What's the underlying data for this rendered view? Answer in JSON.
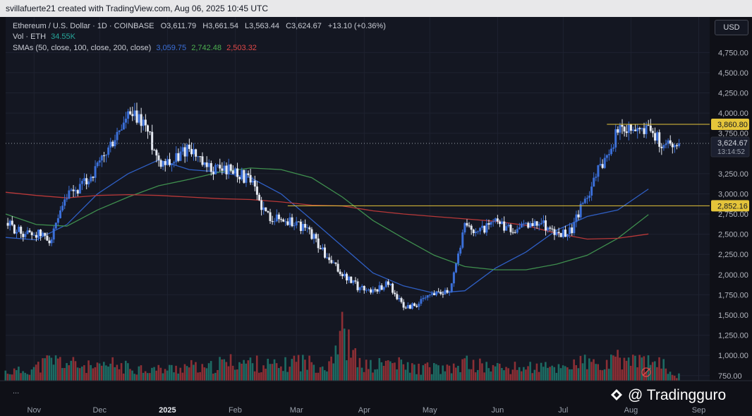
{
  "header": {
    "text": "svillafuerte21 created with TradingView.com, Aug 06, 2025 10:45 UTC"
  },
  "legend": {
    "symbol": "Ethereum / U.S. Dollar · 1D · COINBASE",
    "open_label": "O",
    "open": "3,611.79",
    "high_label": "H",
    "high": "3,661.54",
    "low_label": "L",
    "low": "3,563.44",
    "close_label": "C",
    "close": "3,624.67",
    "change": "+13.10 (+0.36%)",
    "vol_label": "Vol · ETH",
    "vol_value": "34.55K",
    "sma_label": "SMAs (50, close, 100, close, 200, close)",
    "sma50": "3,059.75",
    "sma100": "2,742.48",
    "sma200": "2,503.32"
  },
  "currency_button": "USD",
  "price_tag": {
    "value": "3,624.67",
    "countdown": "13:14:52"
  },
  "more_dots": "...",
  "watermark": "@ Tradingguro",
  "colors": {
    "up": "#3b6fd8",
    "down": "#e6eaf2",
    "sma50": "#2f5fc4",
    "sma100": "#3f8f4e",
    "sma200": "#b83838",
    "level": "#e5c53a",
    "vol_up": "#1d6b63",
    "vol_down": "#8c2f35",
    "background": "#141722",
    "grid": "#1e2230"
  },
  "chart_data": {
    "type": "candlestick",
    "title": "Ethereum / U.S. Dollar · 1D · COINBASE",
    "y_unit": "USD",
    "ylim": [
      680,
      5000
    ],
    "grid": true,
    "y_ticks": [
      "750.00",
      "1,000.00",
      "1,250.00",
      "1,500.00",
      "1,750.00",
      "2,000.00",
      "2,250.00",
      "2,500.00",
      "2,750.00",
      "3,000.00",
      "3,250.00",
      "3,750.00",
      "4,000.00",
      "4,250.00",
      "4,500.00",
      "4,750.00"
    ],
    "x_ticks": [
      "Nov",
      "Dec",
      "2025",
      "Feb",
      "Mar",
      "Apr",
      "May",
      "Jun",
      "Jul",
      "Aug",
      "Sep"
    ],
    "x_range": [
      "2024-10-19",
      "2025-09-06"
    ],
    "levels": [
      {
        "label": "3,860.80",
        "value": 3860.8,
        "color": "#e5c53a"
      },
      {
        "label": "2,852.16",
        "value": 2852.16,
        "color": "#e5c53a"
      }
    ],
    "close_series_weekly": {
      "start": "2024-10-19",
      "step_days": 7,
      "values": [
        2640,
        2520,
        2510,
        2440,
        2950,
        3090,
        3320,
        3640,
        3960,
        3900,
        3420,
        3410,
        3600,
        3310,
        3320,
        3290,
        3150,
        2750,
        2680,
        2640,
        2500,
        2200,
        2000,
        1850,
        1800,
        1900,
        1590,
        1640,
        1780,
        1810,
        2600,
        2550,
        2640,
        2550,
        2600,
        2660,
        2490,
        2560,
        2990,
        3400,
        3770,
        3820,
        3800,
        3610,
        3624.67
      ]
    },
    "series": [
      {
        "name": "SMA 50",
        "last": 3059.75,
        "start": "2024-10-19",
        "step_days": 14,
        "values": [
          2460,
          2430,
          2620,
          3000,
          3250,
          3420,
          3300,
          3270,
          3200,
          3000,
          2680,
          2350,
          2020,
          1860,
          1770,
          1800,
          2080,
          2280,
          2550,
          2720,
          2800,
          3059.75
        ]
      },
      {
        "name": "SMA 100",
        "last": 2742.48,
        "start": "2024-10-19",
        "step_days": 14,
        "values": [
          2750,
          2620,
          2600,
          2800,
          2960,
          3100,
          3180,
          3270,
          3320,
          3300,
          3200,
          2960,
          2670,
          2450,
          2240,
          2100,
          2060,
          2060,
          2130,
          2240,
          2450,
          2742.48
        ]
      },
      {
        "name": "SMA 200",
        "last": 2503.32,
        "start": "2024-10-19",
        "step_days": 14,
        "values": [
          3020,
          2980,
          2950,
          2980,
          2990,
          2980,
          2960,
          2940,
          2930,
          2900,
          2860,
          2850,
          2790,
          2750,
          2720,
          2690,
          2660,
          2610,
          2510,
          2440,
          2450,
          2503.32
        ]
      }
    ],
    "volume": {
      "label": "Vol · ETH",
      "start": "2024-10-19",
      "step_days": 7,
      "values_k": [
        380,
        420,
        560,
        900,
        760,
        640,
        520,
        700,
        560,
        540,
        480,
        520,
        640,
        460,
        720,
        820,
        760,
        690,
        580,
        900,
        720,
        660,
        2100,
        760,
        580,
        800,
        640,
        520,
        560,
        450,
        760,
        640,
        580,
        520,
        600,
        560,
        540,
        720,
        780,
        560,
        900,
        880,
        760,
        640,
        34.55
      ]
    }
  }
}
